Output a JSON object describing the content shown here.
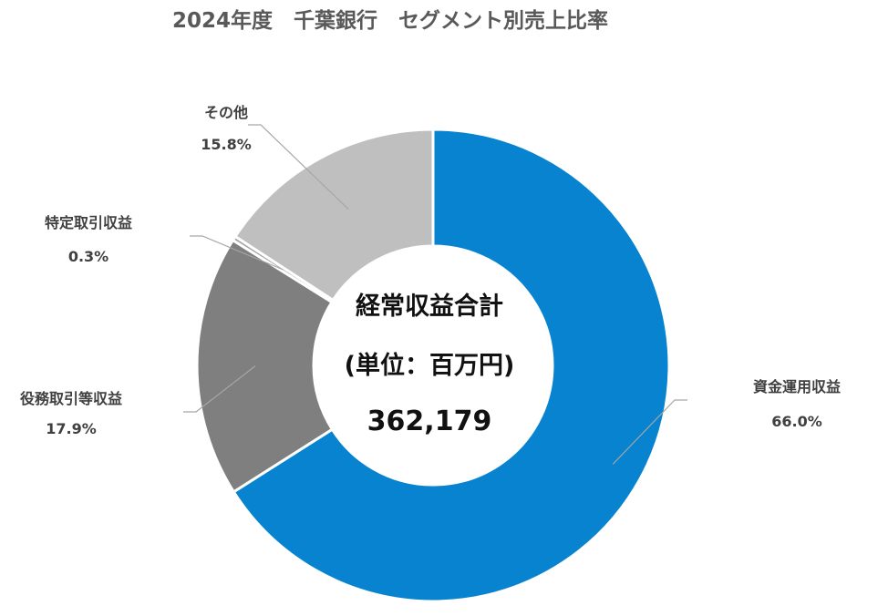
{
  "chart_data": {
    "type": "pie",
    "title": "2024年度　千葉銀行　セグメント別売上比率",
    "center": {
      "line1": "経常収益合計",
      "line2": "(単位：百万円)",
      "line3": "362,179"
    },
    "slices": [
      {
        "label": "資金運用収益",
        "value": 66.0,
        "value_label": "66.0%",
        "color": "#0783d0"
      },
      {
        "label": "役務取引等収益",
        "value": 17.9,
        "value_label": "17.9%",
        "color": "#7f7f7f"
      },
      {
        "label": "特定取引収益",
        "value": 0.3,
        "value_label": "0.3%",
        "color": "#a5a5a5"
      },
      {
        "label": "その他",
        "value": 15.8,
        "value_label": "15.8%",
        "color": "#bfbfbf"
      }
    ],
    "legend": "none"
  }
}
